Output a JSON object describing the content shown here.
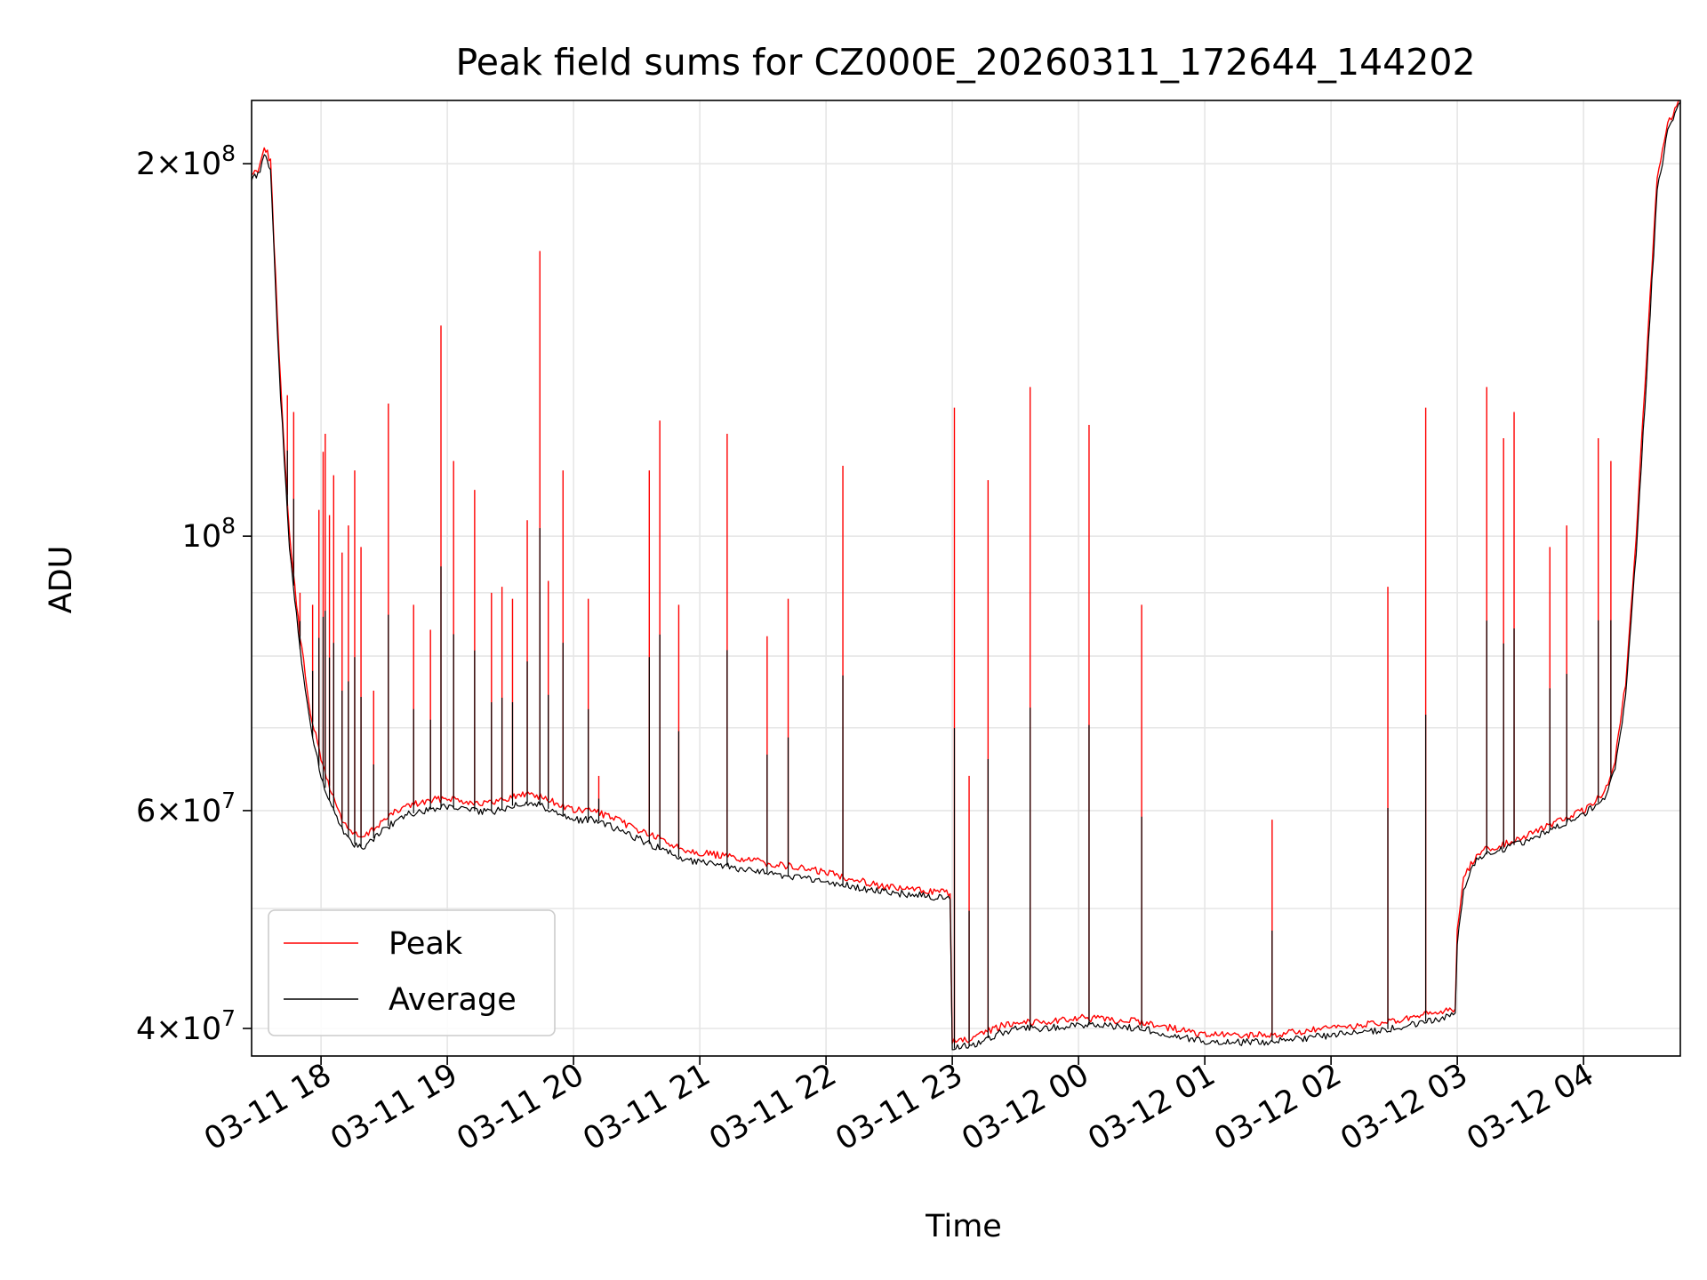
{
  "chart_data": {
    "type": "line",
    "title": "Peak field sums for CZ000E_20260311_172644_144202",
    "xlabel": "Time",
    "ylabel": "ADU",
    "x_range": [
      "2026-03-11 17:27",
      "2026-03-12 04:46"
    ],
    "y_scale": "log",
    "ylim": [
      38000000,
      225000000
    ],
    "grid": true,
    "legend_position": "lower-left",
    "x_ticks": [
      "03-11 18",
      "03-11 19",
      "03-11 20",
      "03-11 21",
      "03-11 22",
      "03-11 23",
      "03-12 00",
      "03-12 01",
      "03-12 02",
      "03-12 03",
      "03-12 04"
    ],
    "x_tick_times": [
      "2026-03-11 18:00",
      "2026-03-11 19:00",
      "2026-03-11 20:00",
      "2026-03-11 21:00",
      "2026-03-11 22:00",
      "2026-03-11 23:00",
      "2026-03-12 00:00",
      "2026-03-12 01:00",
      "2026-03-12 02:00",
      "2026-03-12 03:00",
      "2026-03-12 04:00"
    ],
    "y_ticks": [
      {
        "value": 40000000,
        "mantissa": "4",
        "exponent": "7"
      },
      {
        "value": 60000000,
        "mantissa": "6",
        "exponent": "7"
      },
      {
        "value": 100000000,
        "mantissa": "",
        "exponent": "8"
      },
      {
        "value": 200000000,
        "mantissa": "2",
        "exponent": "8"
      }
    ],
    "minor_y_gridlines": [
      50000000,
      70000000,
      80000000,
      90000000
    ],
    "series": [
      {
        "name": "Peak",
        "color": "#ff0000",
        "x": [
          "2026-03-11 17:27",
          "2026-03-11 17:30",
          "2026-03-11 17:32",
          "2026-03-11 17:33",
          "2026-03-11 17:36",
          "2026-03-11 17:40",
          "2026-03-11 17:45",
          "2026-03-11 17:50",
          "2026-03-11 17:55",
          "2026-03-11 18:00",
          "2026-03-11 18:05",
          "2026-03-11 18:10",
          "2026-03-11 18:15",
          "2026-03-11 18:20",
          "2026-03-11 18:25",
          "2026-03-11 18:30",
          "2026-03-11 18:40",
          "2026-03-11 18:50",
          "2026-03-11 19:00",
          "2026-03-11 19:10",
          "2026-03-11 19:20",
          "2026-03-11 19:30",
          "2026-03-11 19:40",
          "2026-03-11 19:50",
          "2026-03-11 20:00",
          "2026-03-11 20:10",
          "2026-03-11 20:20",
          "2026-03-11 20:30",
          "2026-03-11 20:40",
          "2026-03-11 20:50",
          "2026-03-11 21:00",
          "2026-03-11 21:15",
          "2026-03-11 21:30",
          "2026-03-11 21:45",
          "2026-03-11 22:00",
          "2026-03-11 22:30",
          "2026-03-11 22:59",
          "2026-03-11 23:00",
          "2026-03-11 23:10",
          "2026-03-11 23:20",
          "2026-03-11 23:30",
          "2026-03-11 23:45",
          "2026-03-12 00:00",
          "2026-03-12 00:30",
          "2026-03-12 01:00",
          "2026-03-12 01:30",
          "2026-03-12 02:00",
          "2026-03-12 02:30",
          "2026-03-12 02:59",
          "2026-03-12 03:00",
          "2026-03-12 03:03",
          "2026-03-12 03:10",
          "2026-03-12 03:30",
          "2026-03-12 03:45",
          "2026-03-12 04:00",
          "2026-03-12 04:10",
          "2026-03-12 04:15",
          "2026-03-12 04:20",
          "2026-03-12 04:25",
          "2026-03-12 04:30",
          "2026-03-12 04:35",
          "2026-03-12 04:40",
          "2026-03-12 04:46"
        ],
        "y": [
          196000000,
          198000000,
          203000000,
          207000000,
          201000000,
          140000000,
          100000000,
          83000000,
          72000000,
          66000000,
          62000000,
          59000000,
          57500000,
          57000000,
          58000000,
          59000000,
          60500000,
          61000000,
          61500000,
          61000000,
          60800000,
          61500000,
          62000000,
          61000000,
          60000000,
          60000000,
          59000000,
          58000000,
          57000000,
          56000000,
          55500000,
          55000000,
          54500000,
          54000000,
          53500000,
          52000000,
          51500000,
          39000000,
          39200000,
          40000000,
          40500000,
          40500000,
          40800000,
          40500000,
          39500000,
          39500000,
          40000000,
          40500000,
          41500000,
          48000000,
          53000000,
          55500000,
          57000000,
          58500000,
          60000000,
          62000000,
          66000000,
          76000000,
          100000000,
          140000000,
          195000000,
          215000000,
          225000000
        ],
        "spikes": [
          {
            "x": "2026-03-11 17:44",
            "y": 130000000
          },
          {
            "x": "2026-03-11 17:47",
            "y": 126000000
          },
          {
            "x": "2026-03-11 17:50",
            "y": 90000000
          },
          {
            "x": "2026-03-11 17:56",
            "y": 88000000
          },
          {
            "x": "2026-03-11 17:59",
            "y": 105000000
          },
          {
            "x": "2026-03-11 18:01",
            "y": 117000000
          },
          {
            "x": "2026-03-11 18:02",
            "y": 121000000
          },
          {
            "x": "2026-03-11 18:04",
            "y": 104000000
          },
          {
            "x": "2026-03-11 18:06",
            "y": 112000000
          },
          {
            "x": "2026-03-11 18:10",
            "y": 97000000
          },
          {
            "x": "2026-03-11 18:13",
            "y": 102000000
          },
          {
            "x": "2026-03-11 18:16",
            "y": 113000000
          },
          {
            "x": "2026-03-11 18:19",
            "y": 98000000
          },
          {
            "x": "2026-03-11 18:25",
            "y": 75000000
          },
          {
            "x": "2026-03-11 18:32",
            "y": 128000000
          },
          {
            "x": "2026-03-11 18:44",
            "y": 88000000
          },
          {
            "x": "2026-03-11 18:52",
            "y": 84000000
          },
          {
            "x": "2026-03-11 18:57",
            "y": 148000000
          },
          {
            "x": "2026-03-11 19:03",
            "y": 115000000
          },
          {
            "x": "2026-03-11 19:13",
            "y": 109000000
          },
          {
            "x": "2026-03-11 19:21",
            "y": 90000000
          },
          {
            "x": "2026-03-11 19:26",
            "y": 91000000
          },
          {
            "x": "2026-03-11 19:31",
            "y": 89000000
          },
          {
            "x": "2026-03-11 19:38",
            "y": 103000000
          },
          {
            "x": "2026-03-11 19:44",
            "y": 170000000
          },
          {
            "x": "2026-03-11 19:48",
            "y": 92000000
          },
          {
            "x": "2026-03-11 19:55",
            "y": 113000000
          },
          {
            "x": "2026-03-11 20:07",
            "y": 89000000
          },
          {
            "x": "2026-03-11 20:12",
            "y": 64000000
          },
          {
            "x": "2026-03-11 20:36",
            "y": 113000000
          },
          {
            "x": "2026-03-11 20:41",
            "y": 124000000
          },
          {
            "x": "2026-03-11 20:50",
            "y": 88000000
          },
          {
            "x": "2026-03-11 21:13",
            "y": 121000000
          },
          {
            "x": "2026-03-11 21:32",
            "y": 83000000
          },
          {
            "x": "2026-03-11 21:42",
            "y": 89000000
          },
          {
            "x": "2026-03-11 22:08",
            "y": 114000000
          },
          {
            "x": "2026-03-11 23:01",
            "y": 127000000
          },
          {
            "x": "2026-03-11 23:08",
            "y": 64000000
          },
          {
            "x": "2026-03-11 23:17",
            "y": 111000000
          },
          {
            "x": "2026-03-11 23:37",
            "y": 132000000
          },
          {
            "x": "2026-03-12 00:05",
            "y": 123000000
          },
          {
            "x": "2026-03-12 00:30",
            "y": 88000000
          },
          {
            "x": "2026-03-12 01:32",
            "y": 59000000
          },
          {
            "x": "2026-03-12 02:27",
            "y": 91000000
          },
          {
            "x": "2026-03-12 02:45",
            "y": 127000000
          },
          {
            "x": "2026-03-12 03:14",
            "y": 132000000
          },
          {
            "x": "2026-03-12 03:22",
            "y": 120000000
          },
          {
            "x": "2026-03-12 03:27",
            "y": 126000000
          },
          {
            "x": "2026-03-12 03:44",
            "y": 98000000
          },
          {
            "x": "2026-03-12 03:52",
            "y": 102000000
          },
          {
            "x": "2026-03-12 04:07",
            "y": 120000000
          },
          {
            "x": "2026-03-12 04:13",
            "y": 115000000
          }
        ]
      },
      {
        "name": "Average",
        "color": "#000000",
        "x": [
          "2026-03-11 17:27",
          "2026-03-11 17:30",
          "2026-03-11 17:32",
          "2026-03-11 17:33",
          "2026-03-11 17:36",
          "2026-03-11 17:40",
          "2026-03-11 17:45",
          "2026-03-11 17:50",
          "2026-03-11 17:55",
          "2026-03-11 18:00",
          "2026-03-11 18:05",
          "2026-03-11 18:10",
          "2026-03-11 18:15",
          "2026-03-11 18:20",
          "2026-03-11 18:25",
          "2026-03-11 18:30",
          "2026-03-11 18:40",
          "2026-03-11 18:50",
          "2026-03-11 19:00",
          "2026-03-11 19:10",
          "2026-03-11 19:20",
          "2026-03-11 19:30",
          "2026-03-11 19:40",
          "2026-03-11 19:50",
          "2026-03-11 20:00",
          "2026-03-11 20:10",
          "2026-03-11 20:20",
          "2026-03-11 20:30",
          "2026-03-11 20:40",
          "2026-03-11 20:50",
          "2026-03-11 21:00",
          "2026-03-11 21:15",
          "2026-03-11 21:30",
          "2026-03-11 21:45",
          "2026-03-11 22:00",
          "2026-03-11 22:30",
          "2026-03-11 22:59",
          "2026-03-11 23:00",
          "2026-03-11 23:10",
          "2026-03-11 23:20",
          "2026-03-11 23:30",
          "2026-03-11 23:45",
          "2026-03-12 00:00",
          "2026-03-12 00:30",
          "2026-03-12 01:00",
          "2026-03-12 01:30",
          "2026-03-12 02:00",
          "2026-03-12 02:30",
          "2026-03-12 02:59",
          "2026-03-12 03:00",
          "2026-03-12 03:03",
          "2026-03-12 03:10",
          "2026-03-12 03:30",
          "2026-03-12 03:45",
          "2026-03-12 04:00",
          "2026-03-12 04:10",
          "2026-03-12 04:15",
          "2026-03-12 04:20",
          "2026-03-12 04:25",
          "2026-03-12 04:30",
          "2026-03-12 04:35",
          "2026-03-12 04:40",
          "2026-03-12 04:46"
        ],
        "y": [
          194000000,
          196000000,
          200000000,
          204000000,
          198000000,
          137000000,
          98000000,
          81000000,
          70000000,
          64000000,
          60500000,
          58000000,
          56500000,
          56000000,
          57000000,
          58000000,
          59500000,
          60000000,
          60500000,
          60000000,
          59800000,
          60500000,
          61000000,
          60000000,
          59000000,
          59000000,
          58000000,
          57000000,
          56000000,
          55000000,
          54500000,
          54000000,
          53500000,
          53000000,
          52500000,
          51500000,
          51000000,
          38500000,
          38800000,
          39500000,
          40000000,
          40000000,
          40300000,
          40000000,
          39000000,
          39000000,
          39500000,
          40000000,
          41000000,
          47000000,
          52000000,
          55000000,
          56500000,
          58000000,
          59500000,
          61500000,
          65000000,
          74000000,
          97000000,
          135000000,
          190000000,
          212000000,
          224000000
        ]
      }
    ]
  }
}
